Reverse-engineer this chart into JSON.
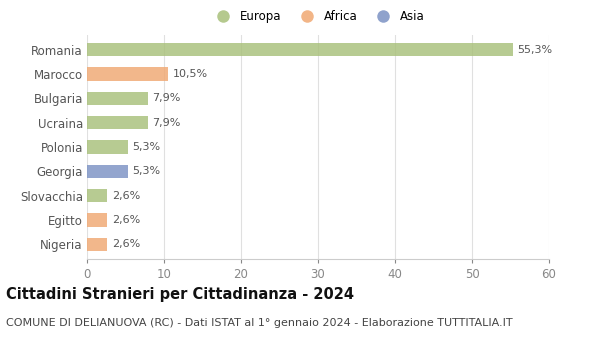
{
  "categories": [
    "Romania",
    "Marocco",
    "Bulgaria",
    "Ucraina",
    "Polonia",
    "Georgia",
    "Slovacchia",
    "Egitto",
    "Nigeria"
  ],
  "values": [
    55.3,
    10.5,
    7.9,
    7.9,
    5.3,
    5.3,
    2.6,
    2.6,
    2.6
  ],
  "labels": [
    "55,3%",
    "10,5%",
    "7,9%",
    "7,9%",
    "5,3%",
    "5,3%",
    "2,6%",
    "2,6%",
    "2,6%"
  ],
  "colors": [
    "#a8c07a",
    "#f0a872",
    "#a8c07a",
    "#a8c07a",
    "#a8c07a",
    "#7b92c4",
    "#a8c07a",
    "#f0a872",
    "#f0a872"
  ],
  "legend_labels": [
    "Europa",
    "Africa",
    "Asia"
  ],
  "legend_colors": [
    "#a8c07a",
    "#f0a872",
    "#7b92c4"
  ],
  "title": "Cittadini Stranieri per Cittadinanza - 2024",
  "subtitle": "COMUNE DI DELIANUOVA (RC) - Dati ISTAT al 1° gennaio 2024 - Elaborazione TUTTITALIA.IT",
  "xlim": [
    0,
    60
  ],
  "xticks": [
    0,
    10,
    20,
    30,
    40,
    50,
    60
  ],
  "background_color": "#ffffff",
  "grid_color": "#e0e0e0",
  "bar_height": 0.55,
  "title_fontsize": 10.5,
  "subtitle_fontsize": 8,
  "tick_fontsize": 8.5,
  "label_fontsize": 8,
  "legend_fontsize": 8.5
}
